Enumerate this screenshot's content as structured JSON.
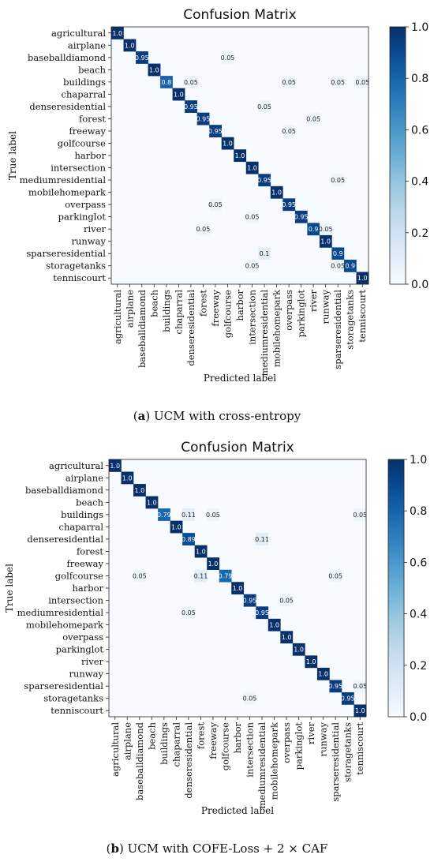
{
  "chart_data": [
    {
      "type": "heatmap",
      "title": "Confusion Matrix",
      "xlabel": "Predicted label",
      "ylabel": "True label",
      "colorbar_ticks": [
        "0.0",
        "0.2",
        "0.4",
        "0.6",
        "0.8",
        "1.0"
      ],
      "colorbar_range": [
        0,
        1
      ],
      "colormap": "Blues",
      "labels": [
        "agricultural",
        "airplane",
        "baseballdiamond",
        "beach",
        "buildings",
        "chaparral",
        "denseresidential",
        "forest",
        "freeway",
        "golfcourse",
        "harbor",
        "intersection",
        "mediumresidential",
        "mobilehomepark",
        "overpass",
        "parkinglot",
        "river",
        "runway",
        "sparseresidential",
        "storagetanks",
        "tenniscourt"
      ],
      "cells": [
        {
          "row": 0,
          "col": 0,
          "v": 1.0,
          "label": "1.0"
        },
        {
          "row": 1,
          "col": 1,
          "v": 1.0,
          "label": "1.0"
        },
        {
          "row": 2,
          "col": 2,
          "v": 0.95,
          "label": "0.95"
        },
        {
          "row": 2,
          "col": 9,
          "v": 0.05,
          "label": "0.05"
        },
        {
          "row": 3,
          "col": 3,
          "v": 1.0,
          "label": "1.0"
        },
        {
          "row": 4,
          "col": 4,
          "v": 0.8,
          "label": "0.8"
        },
        {
          "row": 4,
          "col": 6,
          "v": 0.05,
          "label": "0.05"
        },
        {
          "row": 4,
          "col": 14,
          "v": 0.05,
          "label": "0.05"
        },
        {
          "row": 4,
          "col": 18,
          "v": 0.05,
          "label": "0.05"
        },
        {
          "row": 4,
          "col": 20,
          "v": 0.05,
          "label": "0.05"
        },
        {
          "row": 5,
          "col": 5,
          "v": 1.0,
          "label": "1.0"
        },
        {
          "row": 6,
          "col": 6,
          "v": 0.95,
          "label": "0.95"
        },
        {
          "row": 6,
          "col": 12,
          "v": 0.05,
          "label": "0.05"
        },
        {
          "row": 7,
          "col": 7,
          "v": 0.95,
          "label": "0.95"
        },
        {
          "row": 7,
          "col": 16,
          "v": 0.05,
          "label": "0.05"
        },
        {
          "row": 8,
          "col": 8,
          "v": 0.95,
          "label": "0.95"
        },
        {
          "row": 8,
          "col": 14,
          "v": 0.05,
          "label": "0.05"
        },
        {
          "row": 9,
          "col": 9,
          "v": 1.0,
          "label": "1.0"
        },
        {
          "row": 10,
          "col": 10,
          "v": 1.0,
          "label": "1.0"
        },
        {
          "row": 11,
          "col": 11,
          "v": 1.0,
          "label": "1.0"
        },
        {
          "row": 12,
          "col": 12,
          "v": 0.95,
          "label": "0.95"
        },
        {
          "row": 12,
          "col": 18,
          "v": 0.05,
          "label": "0.05"
        },
        {
          "row": 13,
          "col": 13,
          "v": 1.0,
          "label": "1.0"
        },
        {
          "row": 14,
          "col": 8,
          "v": 0.05,
          "label": "0.05"
        },
        {
          "row": 14,
          "col": 14,
          "v": 0.95,
          "label": "0.95"
        },
        {
          "row": 15,
          "col": 11,
          "v": 0.05,
          "label": "0.05"
        },
        {
          "row": 15,
          "col": 15,
          "v": 0.95,
          "label": "0.95"
        },
        {
          "row": 16,
          "col": 7,
          "v": 0.05,
          "label": "0.05"
        },
        {
          "row": 16,
          "col": 16,
          "v": 0.9,
          "label": "0.9"
        },
        {
          "row": 16,
          "col": 17,
          "v": 0.05,
          "label": "0.05"
        },
        {
          "row": 17,
          "col": 17,
          "v": 1.0,
          "label": "1.0"
        },
        {
          "row": 18,
          "col": 12,
          "v": 0.1,
          "label": "0.1"
        },
        {
          "row": 18,
          "col": 18,
          "v": 0.9,
          "label": "0.9"
        },
        {
          "row": 19,
          "col": 11,
          "v": 0.05,
          "label": "0.05"
        },
        {
          "row": 19,
          "col": 18,
          "v": 0.05,
          "label": "0.05"
        },
        {
          "row": 19,
          "col": 19,
          "v": 0.9,
          "label": "0.9"
        },
        {
          "row": 20,
          "col": 20,
          "v": 1.0,
          "label": "1.0"
        }
      ]
    },
    {
      "type": "heatmap",
      "title": "Confusion Matrix",
      "xlabel": "Predicted label",
      "ylabel": "True label",
      "colorbar_ticks": [
        "0.0",
        "0.2",
        "0.4",
        "0.6",
        "0.8",
        "1.0"
      ],
      "colorbar_range": [
        0,
        1
      ],
      "colormap": "Blues",
      "labels": [
        "agricultural",
        "airplane",
        "baseballdiamond",
        "beach",
        "buildings",
        "chaparral",
        "denseresidential",
        "forest",
        "freeway",
        "golfcourse",
        "harbor",
        "intersection",
        "mediumresidential",
        "mobilehomepark",
        "overpass",
        "parkinglot",
        "river",
        "runway",
        "sparseresidential",
        "storagetanks",
        "tenniscourt"
      ],
      "cells": [
        {
          "row": 0,
          "col": 0,
          "v": 1.0,
          "label": "1.0"
        },
        {
          "row": 1,
          "col": 1,
          "v": 1.0,
          "label": "1.0"
        },
        {
          "row": 2,
          "col": 2,
          "v": 1.0,
          "label": "1.0"
        },
        {
          "row": 3,
          "col": 3,
          "v": 1.0,
          "label": "1.0"
        },
        {
          "row": 4,
          "col": 4,
          "v": 0.79,
          "label": "0.79"
        },
        {
          "row": 4,
          "col": 6,
          "v": 0.11,
          "label": "0.11"
        },
        {
          "row": 4,
          "col": 8,
          "v": 0.05,
          "label": "0.05"
        },
        {
          "row": 4,
          "col": 20,
          "v": 0.05,
          "label": "0.05"
        },
        {
          "row": 5,
          "col": 5,
          "v": 1.0,
          "label": "1.0"
        },
        {
          "row": 6,
          "col": 6,
          "v": 0.89,
          "label": "0.89"
        },
        {
          "row": 6,
          "col": 12,
          "v": 0.11,
          "label": "0.11"
        },
        {
          "row": 7,
          "col": 7,
          "v": 1.0,
          "label": "1.0"
        },
        {
          "row": 8,
          "col": 8,
          "v": 1.0,
          "label": "1.0"
        },
        {
          "row": 9,
          "col": 2,
          "v": 0.05,
          "label": "0.05"
        },
        {
          "row": 9,
          "col": 7,
          "v": 0.11,
          "label": "0.11"
        },
        {
          "row": 9,
          "col": 9,
          "v": 0.79,
          "label": "0.79"
        },
        {
          "row": 9,
          "col": 18,
          "v": 0.05,
          "label": "0.05"
        },
        {
          "row": 10,
          "col": 10,
          "v": 1.0,
          "label": "1.0"
        },
        {
          "row": 11,
          "col": 11,
          "v": 0.95,
          "label": "0.95"
        },
        {
          "row": 11,
          "col": 14,
          "v": 0.05,
          "label": "0.05"
        },
        {
          "row": 12,
          "col": 6,
          "v": 0.05,
          "label": "0.05"
        },
        {
          "row": 12,
          "col": 12,
          "v": 0.95,
          "label": "0.95"
        },
        {
          "row": 13,
          "col": 13,
          "v": 1.0,
          "label": "1.0"
        },
        {
          "row": 14,
          "col": 14,
          "v": 1.0,
          "label": "1.0"
        },
        {
          "row": 15,
          "col": 15,
          "v": 1.0,
          "label": "1.0"
        },
        {
          "row": 16,
          "col": 16,
          "v": 1.0,
          "label": "1.0"
        },
        {
          "row": 17,
          "col": 17,
          "v": 1.0,
          "label": "1.0"
        },
        {
          "row": 18,
          "col": 18,
          "v": 0.95,
          "label": "0.95"
        },
        {
          "row": 18,
          "col": 20,
          "v": 0.05,
          "label": "0.05"
        },
        {
          "row": 19,
          "col": 11,
          "v": 0.05,
          "label": "0.05"
        },
        {
          "row": 19,
          "col": 19,
          "v": 0.95,
          "label": "0.95"
        },
        {
          "row": 20,
          "col": 20,
          "v": 1.0,
          "label": "1.0"
        }
      ]
    }
  ],
  "captions": [
    {
      "letter": "a",
      "text": " UCM with cross-entropy"
    },
    {
      "letter": "b",
      "text": " UCM with COFE-Loss + 2 × CAF"
    }
  ]
}
